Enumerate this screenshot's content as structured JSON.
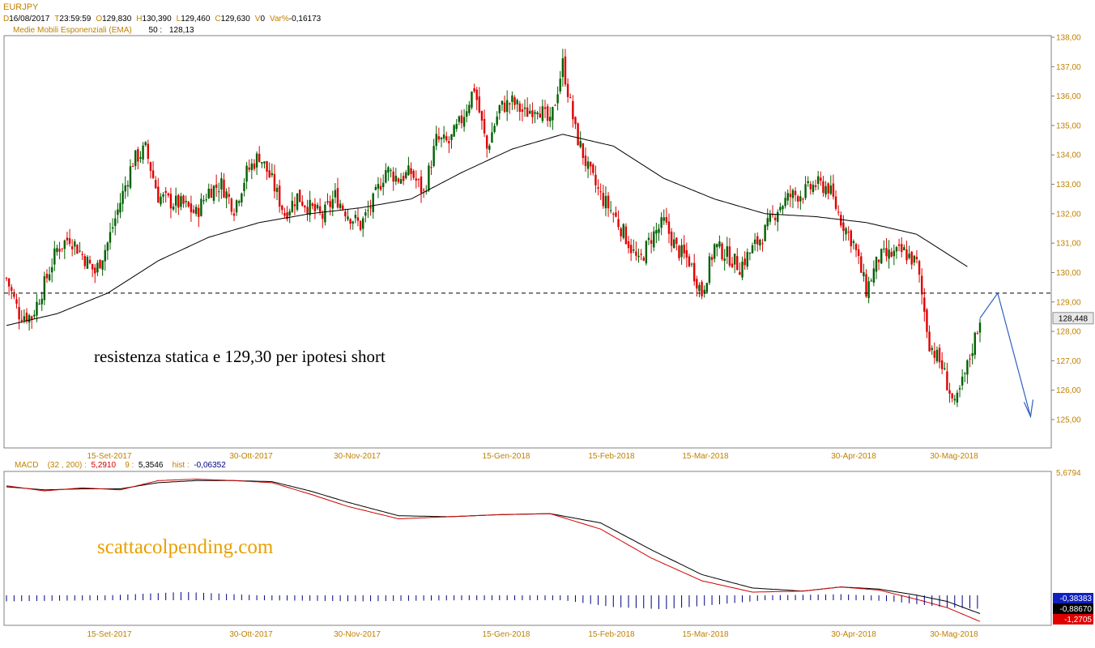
{
  "header": {
    "symbol": "EURJPY",
    "fields": [
      {
        "key": "D",
        "value": "16/08/2017"
      },
      {
        "key": "T",
        "value": "23:59:59"
      },
      {
        "key": "O",
        "value": "129,830"
      },
      {
        "key": "H",
        "value": "130,390"
      },
      {
        "key": "L",
        "value": "129,460"
      },
      {
        "key": "C",
        "value": "129,630"
      },
      {
        "key": "V",
        "value": "0"
      },
      {
        "key": "Var%",
        "value": "-0,16173"
      }
    ],
    "ema_label": "Medie Mobili Esponenziali (EMA)",
    "ema_period": "50 :",
    "ema_value": "128,13"
  },
  "macd_header": {
    "label": "MACD",
    "params": "(32 , 200) :",
    "macd_value": "5,2910",
    "signal_period": "9 :",
    "signal_value": "5,3546",
    "hist_label": "hist :",
    "hist_value": "-0,06352"
  },
  "annotations": {
    "main": "resistenza statica e 129,30 per ipotesi short",
    "site": "scattacolpending.com"
  },
  "price_badge": "128,448",
  "macd_badges": {
    "top_scale": "5,6794",
    "hist": "-0,38383",
    "signal": "-0,88670",
    "macd": "-1,2705"
  },
  "colors": {
    "up": "#006000",
    "down": "#e00000",
    "ema": "#000000",
    "macd": "#d00000",
    "signal": "#000000",
    "hist": "#000080",
    "arrow": "#3060c0",
    "label": "#c08000"
  },
  "chart_data": {
    "type": "candlestick",
    "title": "EURJPY",
    "ylim": [
      124.5,
      138.0
    ],
    "y_ticks": [
      "138,00",
      "137,00",
      "136,00",
      "135,00",
      "134,00",
      "133,00",
      "132,00",
      "131,00",
      "130,00",
      "129,00",
      "128,00",
      "127,00",
      "126,00",
      "125,00"
    ],
    "x_ticks": [
      "15-Set-2017",
      "30-Ott-2017",
      "30-Nov-2017",
      "15-Gen-2018",
      "15-Feb-2018",
      "15-Mar-2018",
      "30-Apr-2018",
      "30-Mag-2018"
    ],
    "resistance_level": 129.3,
    "close_path": [
      [
        0,
        129.8
      ],
      [
        5,
        128.6
      ],
      [
        10,
        128.5
      ],
      [
        15,
        129.6
      ],
      [
        20,
        130.8
      ],
      [
        25,
        131.2
      ],
      [
        30,
        130.6
      ],
      [
        35,
        130.0
      ],
      [
        40,
        131.0
      ],
      [
        45,
        132.4
      ],
      [
        50,
        133.8
      ],
      [
        55,
        134.2
      ],
      [
        60,
        132.6
      ],
      [
        65,
        132.4
      ],
      [
        70,
        132.3
      ],
      [
        75,
        132.0
      ],
      [
        80,
        132.8
      ],
      [
        85,
        133.0
      ],
      [
        90,
        132.2
      ],
      [
        95,
        133.4
      ],
      [
        100,
        134.0
      ],
      [
        105,
        133.1
      ],
      [
        110,
        132.0
      ],
      [
        115,
        132.6
      ],
      [
        120,
        132.2
      ],
      [
        125,
        131.9
      ],
      [
        130,
        132.6
      ],
      [
        135,
        132.0
      ],
      [
        140,
        131.6
      ],
      [
        145,
        132.4
      ],
      [
        150,
        133.5
      ],
      [
        155,
        133.2
      ],
      [
        160,
        133.4
      ],
      [
        165,
        132.7
      ],
      [
        170,
        134.5
      ],
      [
        175,
        134.4
      ],
      [
        180,
        135.2
      ],
      [
        185,
        136.3
      ],
      [
        190,
        134.2
      ],
      [
        195,
        135.6
      ],
      [
        200,
        135.8
      ],
      [
        205,
        135.4
      ],
      [
        210,
        135.7
      ],
      [
        215,
        135.0
      ],
      [
        220,
        137.1
      ],
      [
        225,
        134.8
      ],
      [
        230,
        133.5
      ],
      [
        235,
        132.6
      ],
      [
        240,
        132.0
      ],
      [
        245,
        131.2
      ],
      [
        250,
        130.3
      ],
      [
        255,
        131.2
      ],
      [
        260,
        131.7
      ],
      [
        265,
        130.8
      ],
      [
        270,
        130.4
      ],
      [
        275,
        129.3
      ],
      [
        280,
        130.9
      ],
      [
        285,
        130.6
      ],
      [
        290,
        130.2
      ],
      [
        295,
        130.8
      ],
      [
        300,
        131.4
      ],
      [
        305,
        132.2
      ],
      [
        310,
        132.6
      ],
      [
        315,
        132.7
      ],
      [
        320,
        133.0
      ],
      [
        325,
        132.9
      ],
      [
        330,
        131.8
      ],
      [
        335,
        131.0
      ],
      [
        340,
        129.4
      ],
      [
        345,
        130.5
      ],
      [
        350,
        130.6
      ],
      [
        355,
        130.7
      ],
      [
        360,
        130.3
      ],
      [
        365,
        127.6
      ],
      [
        370,
        126.8
      ],
      [
        375,
        125.4
      ],
      [
        380,
        126.8
      ],
      [
        385,
        128.45
      ]
    ],
    "ema50": [
      [
        0,
        128.2
      ],
      [
        20,
        128.6
      ],
      [
        40,
        129.3
      ],
      [
        60,
        130.4
      ],
      [
        80,
        131.2
      ],
      [
        100,
        131.7
      ],
      [
        120,
        132.0
      ],
      [
        140,
        132.2
      ],
      [
        160,
        132.5
      ],
      [
        180,
        133.4
      ],
      [
        200,
        134.2
      ],
      [
        220,
        134.7
      ],
      [
        240,
        134.3
      ],
      [
        260,
        133.2
      ],
      [
        280,
        132.5
      ],
      [
        300,
        132.0
      ],
      [
        320,
        131.9
      ],
      [
        340,
        131.7
      ],
      [
        360,
        131.3
      ],
      [
        380,
        130.2
      ]
    ],
    "projection": {
      "from": [
        385,
        128.45
      ],
      "peak": [
        392,
        129.3
      ],
      "target": [
        405,
        125.1
      ]
    },
    "macd": {
      "ylim": [
        -1.3,
        5.68
      ],
      "macd_line": [
        [
          0,
          5.3
        ],
        [
          15,
          5.05
        ],
        [
          30,
          5.2
        ],
        [
          45,
          5.1
        ],
        [
          60,
          5.55
        ],
        [
          75,
          5.62
        ],
        [
          90,
          5.55
        ],
        [
          105,
          5.45
        ],
        [
          120,
          4.9
        ],
        [
          135,
          4.3
        ],
        [
          155,
          3.7
        ],
        [
          175,
          3.8
        ],
        [
          195,
          3.9
        ],
        [
          215,
          3.95
        ],
        [
          235,
          3.2
        ],
        [
          255,
          1.8
        ],
        [
          275,
          0.7
        ],
        [
          295,
          0.15
        ],
        [
          315,
          0.2
        ],
        [
          330,
          0.4
        ],
        [
          345,
          0.25
        ],
        [
          360,
          -0.2
        ],
        [
          372,
          -0.6
        ],
        [
          385,
          -1.27
        ]
      ],
      "signal_line": [
        [
          0,
          5.25
        ],
        [
          15,
          5.1
        ],
        [
          30,
          5.15
        ],
        [
          45,
          5.15
        ],
        [
          60,
          5.45
        ],
        [
          75,
          5.55
        ],
        [
          90,
          5.55
        ],
        [
          105,
          5.5
        ],
        [
          120,
          5.05
        ],
        [
          135,
          4.5
        ],
        [
          155,
          3.85
        ],
        [
          175,
          3.8
        ],
        [
          195,
          3.9
        ],
        [
          215,
          3.95
        ],
        [
          235,
          3.5
        ],
        [
          255,
          2.2
        ],
        [
          275,
          1.0
        ],
        [
          295,
          0.35
        ],
        [
          315,
          0.2
        ],
        [
          330,
          0.4
        ],
        [
          345,
          0.3
        ],
        [
          360,
          0.0
        ],
        [
          372,
          -0.3
        ],
        [
          385,
          -0.89
        ]
      ],
      "hist": [
        [
          0,
          -0.05
        ],
        [
          40,
          0.0
        ],
        [
          70,
          0.15
        ],
        [
          100,
          0.0
        ],
        [
          140,
          -0.05
        ],
        [
          180,
          0.0
        ],
        [
          220,
          0.0
        ],
        [
          240,
          -0.3
        ],
        [
          260,
          -0.4
        ],
        [
          280,
          -0.2
        ],
        [
          300,
          0.0
        ],
        [
          330,
          0.05
        ],
        [
          350,
          -0.05
        ],
        [
          370,
          -0.3
        ],
        [
          385,
          -0.38
        ]
      ]
    }
  }
}
